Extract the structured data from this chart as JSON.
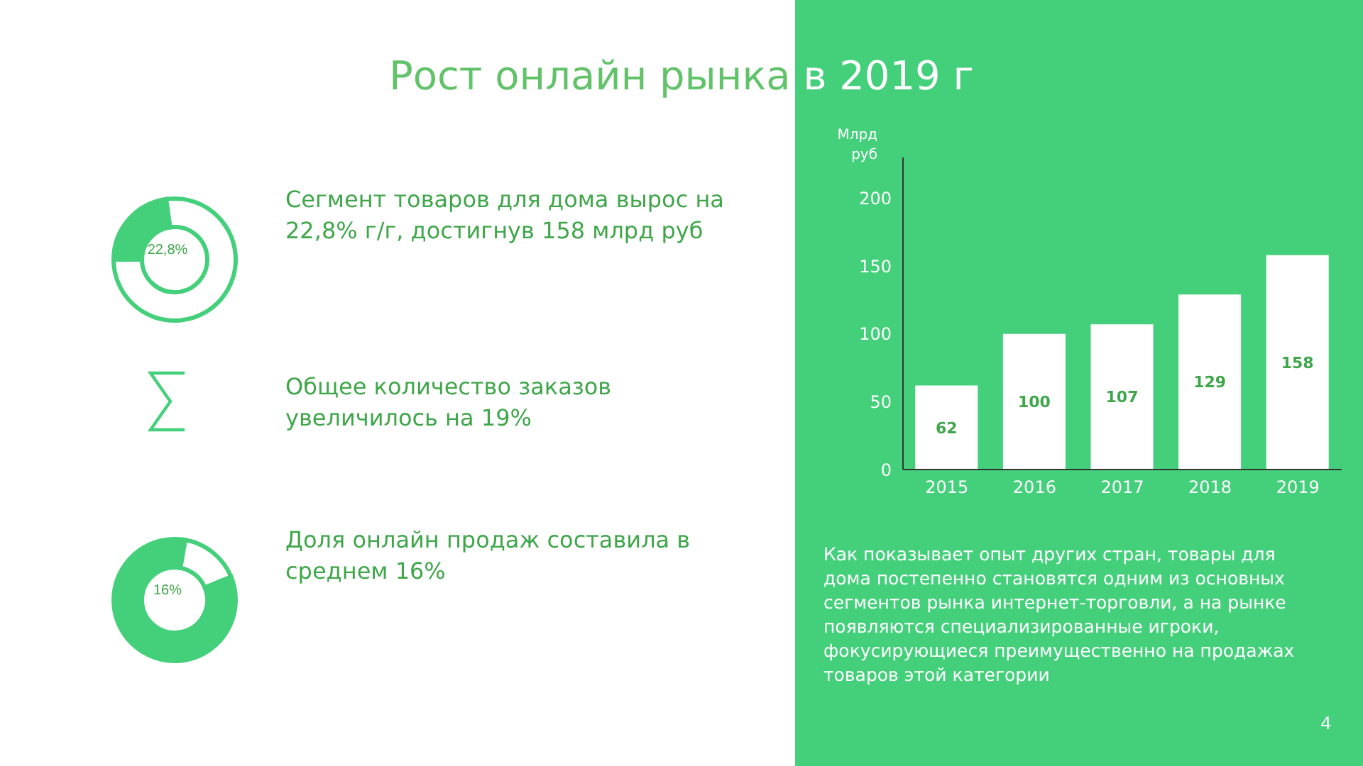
{
  "chart_data": [
    {
      "type": "donut",
      "categories": [
        null,
        null
      ],
      "values": [
        22.8,
        77.2
      ],
      "colors": [
        "#44d07b",
        "#ffffff"
      ],
      "annotations": [
        "22,8%",
        "Сегмент товаров для дома вырос на 22,8% г/г, достигнув 158 млрд руб"
      ]
    },
    {
      "type": "other",
      "annotations": [
        "Общее количество заказов увеличилось на 19%"
      ]
    },
    {
      "type": "donut",
      "categories": [
        null,
        null
      ],
      "values": [
        16,
        84
      ],
      "colors": [
        "#ffffff",
        "#44d07b"
      ],
      "annotations": [
        "16%",
        "Доля онлайн продаж составила в среднем 16%"
      ]
    },
    {
      "type": "bar",
      "title": "Рост онлайн рынка в 2019 г",
      "ylabel": "Млрд руб",
      "categories": [
        "2015",
        "2016",
        "2017",
        "2018",
        "2019"
      ],
      "values": [
        62,
        100,
        107,
        129,
        158
      ],
      "color": "#ffffff",
      "data_labels": true,
      "ylim": [
        0,
        230
      ],
      "yticks": [
        0,
        50,
        100,
        150,
        200
      ],
      "annotations": [
        "Как показывает опыт других стран, товары для дома постепенно становятся одним из основных сегментов рынка интернет-торговли, а на рынке появляются специализированные игроки, фокусирующиеся преимущественно на продажах товаров этой категории",
        "4"
      ]
    }
  ]
}
